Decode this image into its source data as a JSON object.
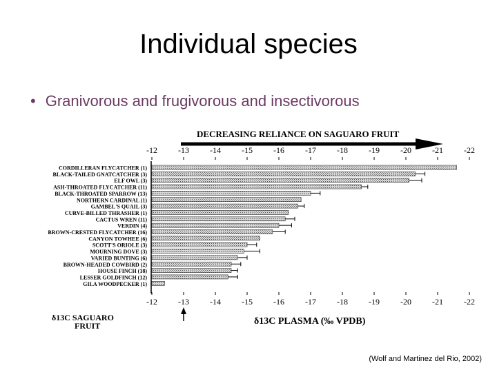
{
  "slide": {
    "title": "Individual species",
    "bullet": "Granivorous and frugivorous and insectivorous",
    "source": "(Wolf and Martinez del Rio, 2002)"
  },
  "chart_data": {
    "type": "bar",
    "orientation": "horizontal",
    "banner": "DECREASING RELIANCE ON SAGUARO FRUIT",
    "xlabel": "δ13C PLASMA (‰ VPDB)",
    "reference_label": "δ13C SAGUARO FRUIT",
    "reference_value": -13,
    "xlim": [
      -12,
      -22
    ],
    "ticks": [
      -12,
      -13,
      -14,
      -15,
      -16,
      -17,
      -18,
      -19,
      -20,
      -21,
      -22
    ],
    "tick_labels": [
      "-12",
      "-13",
      "-14",
      "-15",
      "-16",
      "-17",
      "-18",
      "-19",
      "-20",
      "-21",
      "-22"
    ],
    "categories": [
      "CORDILLERAN FLYCATCHER (1)",
      "BLACK-TAILED GNATCATCHER (3)",
      "ELF OWL (3)",
      "ASH-THROATED FLYCATCHER (11)",
      "BLACK-THROATED SPARROW (13)",
      "NORTHERN CARDINAL (1)",
      "GAMBEL'S QUAIL (3)",
      "CURVE-BILLED THRASHER (1)",
      "CACTUS WREN (11)",
      "VERDIN (4)",
      "BROWN-CRESTED FLYCATCHER (16)",
      "CANYON TOWHEE (6)",
      "SCOTT'S ORIOLE (3)",
      "MOURNING DOVE (3)",
      "VARIED BUNTING (6)",
      "BROWN-HEADED COWBIRD (2)",
      "HOUSE FINCH (18)",
      "LESSER GOLDFINCH (12)",
      "GILA WOODPECKER (1)"
    ],
    "values": [
      -21.6,
      -20.3,
      -20.1,
      -18.6,
      -17.0,
      -16.7,
      -16.6,
      -16.3,
      -16.2,
      -16.0,
      -15.8,
      -15.4,
      -15.0,
      -14.9,
      -14.7,
      -14.5,
      -14.5,
      -14.4,
      -12.4
    ],
    "errors": [
      0,
      0.3,
      0.4,
      0.2,
      0.3,
      0,
      0.2,
      0,
      0.3,
      0.4,
      0.4,
      0,
      0.3,
      0.5,
      0.3,
      0.3,
      0.2,
      0.3,
      0
    ]
  }
}
